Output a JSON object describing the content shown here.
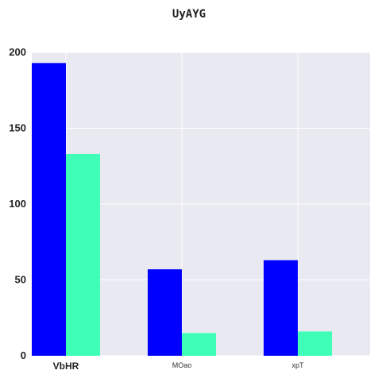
{
  "chart_data": {
    "type": "bar",
    "title": "UyAYG",
    "xlabel": "",
    "ylabel": "",
    "categories": [
      "VbHR",
      "MOao",
      "xpT"
    ],
    "series": [
      {
        "values": [
          193,
          57,
          63
        ],
        "color": "#0000ff"
      },
      {
        "values": [
          133,
          15,
          16
        ],
        "color": "#3fffb8"
      }
    ],
    "ylim": [
      0,
      200
    ],
    "yticks": [
      0,
      50,
      100,
      150,
      200
    ],
    "grid": true,
    "background": "#e9e9f2"
  }
}
